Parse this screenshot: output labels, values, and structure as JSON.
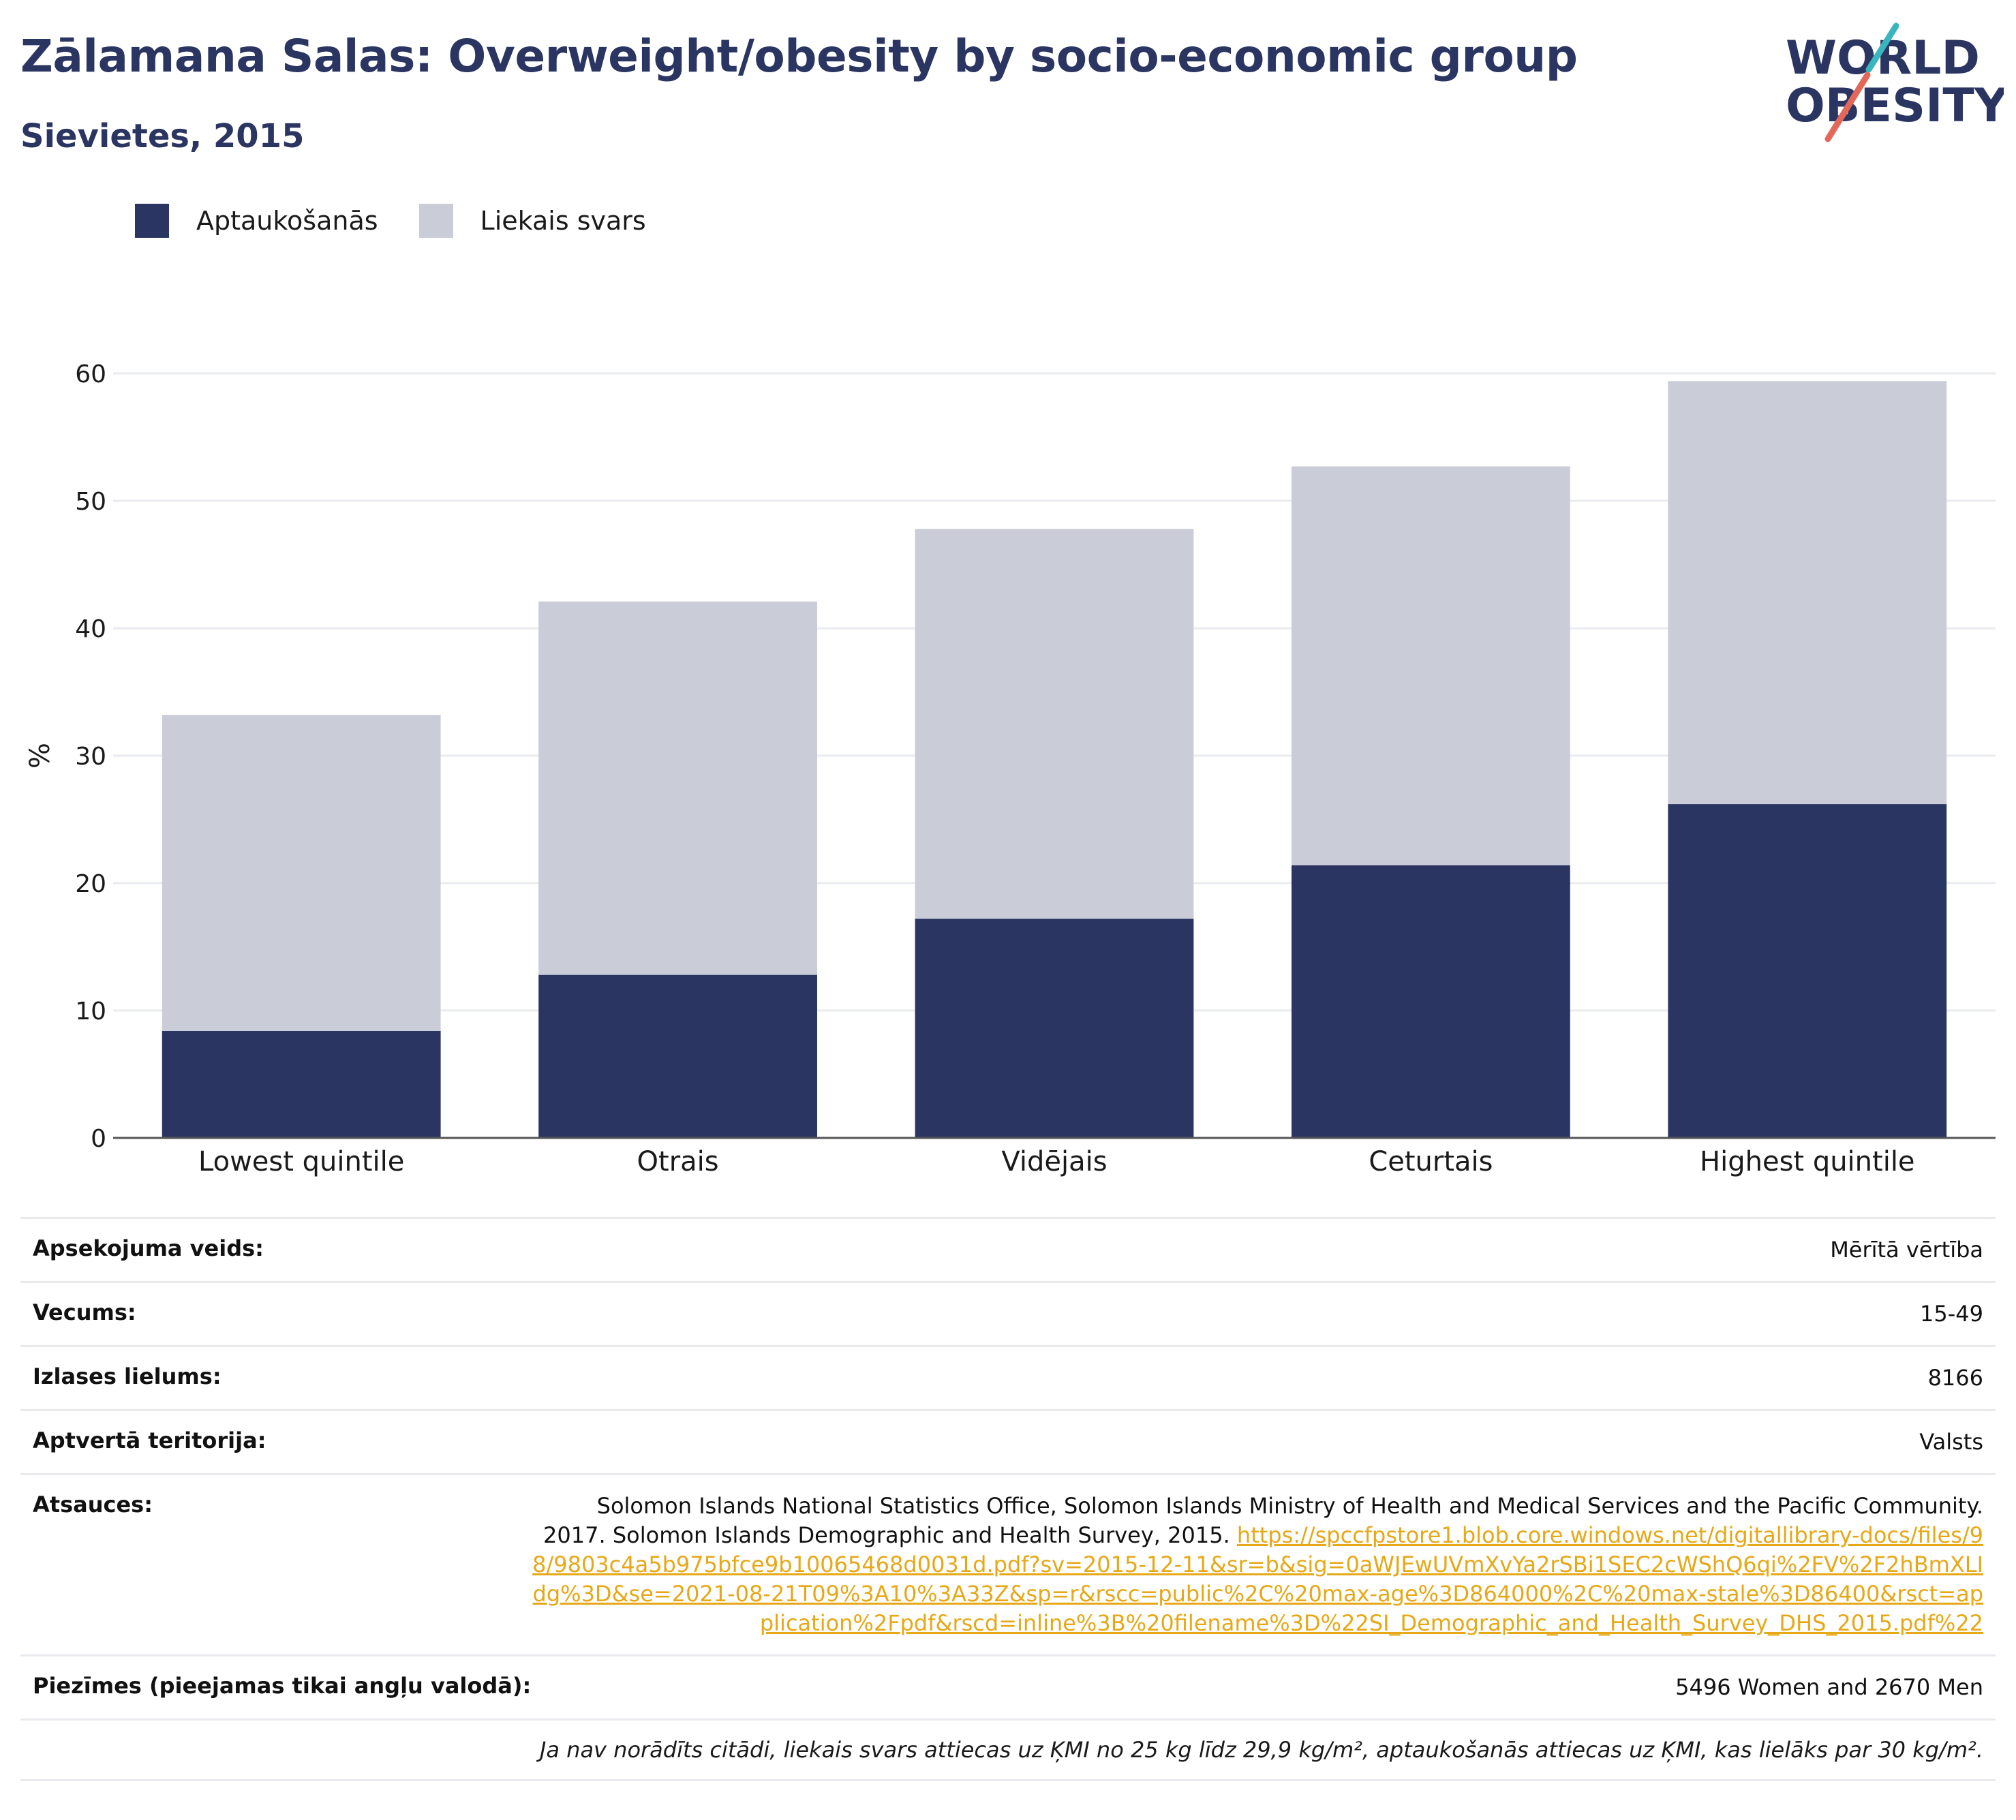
{
  "title": "Zālamana Salas: Overweight/obesity by socio-economic group",
  "subtitle": "Sievietes, 2015",
  "logo": {
    "line1": "WORLD",
    "line2": "OBESITY"
  },
  "colors": {
    "obesity": "#2b3561",
    "overweight": "#caccd8",
    "title": "#2b3561",
    "link": "#e6a817",
    "logo_teal": "#3ab5bd",
    "logo_red": "#e4685a"
  },
  "legend": [
    {
      "label": "Aptaukošanās",
      "color": "#2b3561"
    },
    {
      "label": "Liekais svars",
      "color": "#caccd8"
    }
  ],
  "chart_data": {
    "type": "bar",
    "stacked": true,
    "categories": [
      "Lowest quintile",
      "Otrais",
      "Vidējais",
      "Ceturtais",
      "Highest quintile"
    ],
    "series": [
      {
        "name": "Aptaukošanās",
        "values": [
          8.4,
          12.8,
          17.2,
          21.4,
          26.2
        ]
      },
      {
        "name": "Liekais svars",
        "values": [
          24.8,
          29.3,
          30.6,
          31.3,
          33.2
        ]
      }
    ],
    "ylabel": "%",
    "yticks": [
      0,
      10,
      20,
      30,
      40,
      50,
      60
    ],
    "ylim": [
      0,
      60
    ],
    "grid": true,
    "legend_position": "top-left"
  },
  "meta": {
    "survey_type": {
      "label": "Apsekojuma veids:",
      "value": "Mērītā vērtība"
    },
    "age": {
      "label": "Vecums:",
      "value": "15-49"
    },
    "sample_size": {
      "label": "Izlases lielums:",
      "value": "8166"
    },
    "coverage": {
      "label": "Aptvertā teritorija:",
      "value": "Valsts"
    },
    "references": {
      "label": "Atsauces:",
      "text": "Solomon Islands National Statistics Office, Solomon Islands Ministry of Health and Medical Services and the Pacific Community. 2017. Solomon Islands Demographic and Health Survey, 2015.",
      "link": "https://spccfpstore1.blob.core.windows.net/digitallibrary-docs/files/98/9803c4a5b975bfce9b10065468d0031d.pdf?sv=2015-12-11&sr=b&sig=0aWJEwUVmXvYa2rSBi1SEC2cWShQ6qi%2FV%2F2hBmXLIdg%3D&se=2021-08-21T09%3A10%3A33Z&sp=r&rscc=public%2C%20max-age%3D864000%2C%20max-stale%3D86400&rsct=application%2Fpdf&rscd=inline%3B%20filename%3D%22SI_Demographic_and_Health_Survey_DHS_2015.pdf%22"
    },
    "notes": {
      "label": "Piezīmes (pieejamas tikai angļu valodā):",
      "value": "5496 Women and 2670 Men"
    },
    "definition": "Ja nav norādīts citādi, liekais svars attiecas uz ĶMI no 25 kg līdz 29,9 kg/m², aptaukošanās attiecas uz ĶMI, kas lielāks par 30 kg/m²."
  }
}
